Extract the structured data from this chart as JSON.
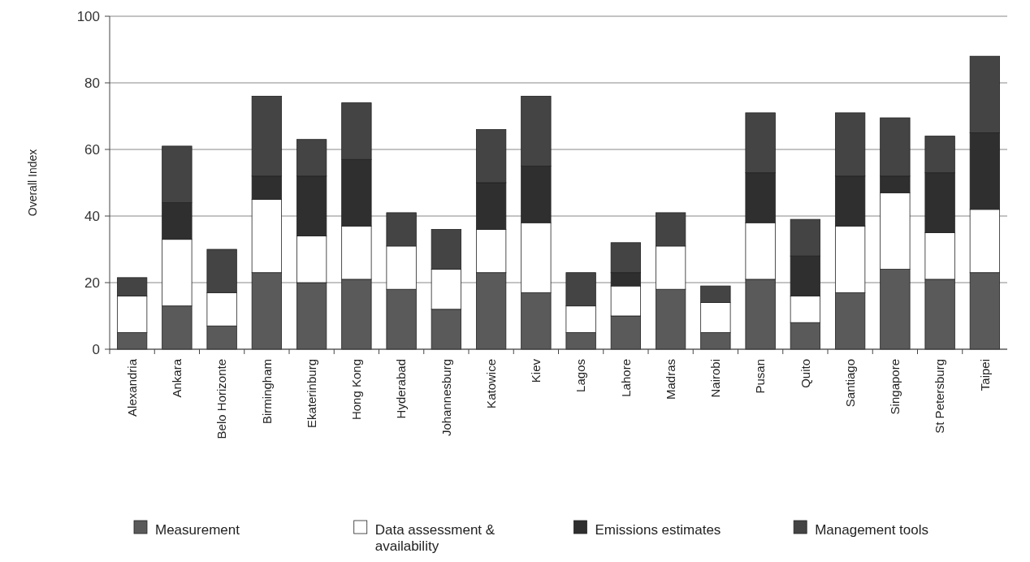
{
  "chart_data": {
    "type": "bar",
    "stacked": true,
    "ylabel": "Overall Index",
    "categories": [
      "Alexandria",
      "Ankara",
      "Belo Horizonte",
      "Birmingham",
      "Ekaterinburg",
      "Hong Kong",
      "Hyderabad",
      "Johannesburg",
      "Katowice",
      "Kiev",
      "Lagos",
      "Lahore",
      "Madras",
      "Nairobi",
      "Pusan",
      "Quito",
      "Santiago",
      "Singapore",
      "St Petersburg",
      "Taipei"
    ],
    "series": [
      {
        "name": "Measurement",
        "color": "#5a5a5a",
        "values": [
          5,
          13,
          7,
          23,
          20,
          21,
          18,
          12,
          23,
          17,
          5,
          10,
          18,
          5,
          21,
          8,
          17,
          24,
          21,
          23
        ]
      },
      {
        "name": "Data assessment & availability",
        "color": "#ffffff",
        "values": [
          11,
          20,
          10,
          22,
          14,
          16,
          13,
          12,
          13,
          21,
          8,
          9,
          13,
          9,
          17,
          8,
          20,
          23,
          14,
          19
        ]
      },
      {
        "name": "Emissions estimates",
        "color": "#2f2f2f",
        "values": [
          0,
          11,
          0,
          7,
          18,
          20,
          0,
          0,
          14,
          17,
          0,
          4,
          0,
          0,
          15,
          12,
          15,
          5,
          18,
          23
        ]
      },
      {
        "name": "Management tools",
        "color": "#444444",
        "values": [
          5.5,
          17,
          13,
          24,
          11,
          17,
          10,
          12,
          16,
          21,
          10,
          9,
          10,
          5,
          18,
          11,
          19,
          17.5,
          11,
          23
        ]
      }
    ],
    "ylim": [
      0,
      100
    ],
    "yticks": [
      0,
      20,
      40,
      60,
      80,
      100
    ],
    "grid": "y",
    "legend": "bottom"
  }
}
